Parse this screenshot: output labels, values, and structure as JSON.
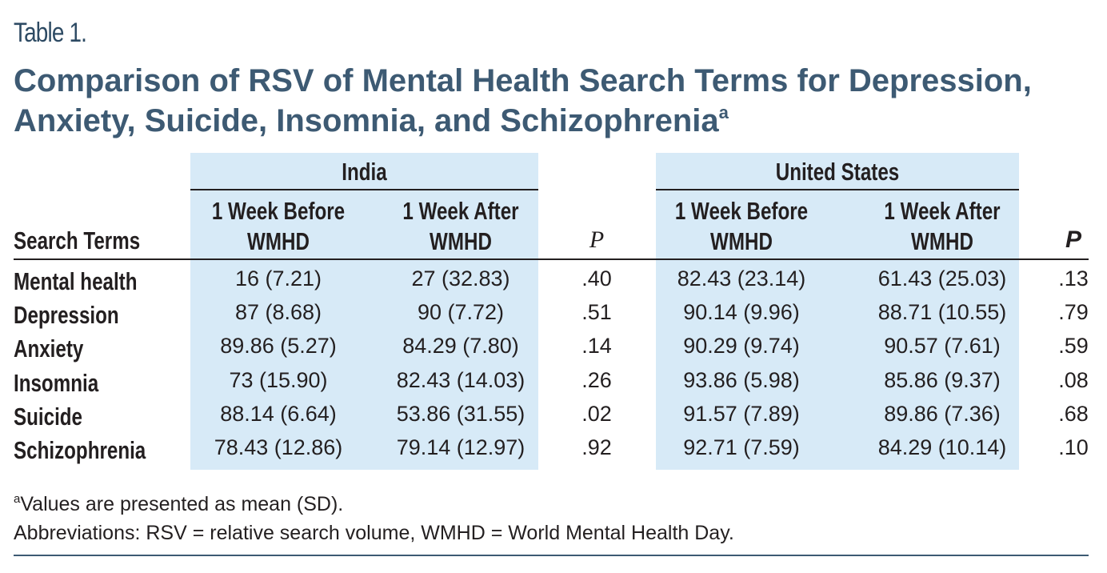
{
  "table_label": "Table 1.",
  "title": "Comparison of RSV of Mental Health Search Terms for Depression, Anxiety, Suicide, Insomnia, and Schizophrenia",
  "title_sup": "a",
  "groups": {
    "india": "India",
    "us": "United States"
  },
  "headers": {
    "search_terms": "Search Terms",
    "before": "1 Week Before WMHD",
    "after": "1 Week After WMHD",
    "p": "P"
  },
  "rows": [
    {
      "term": "Mental health",
      "india_before": "16 (7.21)",
      "india_after": "27 (32.83)",
      "india_p": ".40",
      "us_before": "82.43 (23.14)",
      "us_after": "61.43 (25.03)",
      "us_p": ".13"
    },
    {
      "term": "Depression",
      "india_before": "87 (8.68)",
      "india_after": "90 (7.72)",
      "india_p": ".51",
      "us_before": "90.14 (9.96)",
      "us_after": "88.71 (10.55)",
      "us_p": ".79"
    },
    {
      "term": "Anxiety",
      "india_before": "89.86 (5.27)",
      "india_after": "84.29 (7.80)",
      "india_p": ".14",
      "us_before": "90.29 (9.74)",
      "us_after": "90.57 (7.61)",
      "us_p": ".59"
    },
    {
      "term": "Insomnia",
      "india_before": "73 (15.90)",
      "india_after": "82.43 (14.03)",
      "india_p": ".26",
      "us_before": "93.86 (5.98)",
      "us_after": "85.86 (9.37)",
      "us_p": ".08"
    },
    {
      "term": "Suicide",
      "india_before": "88.14 (6.64)",
      "india_after": "53.86 (31.55)",
      "india_p": ".02",
      "us_before": "91.57 (7.89)",
      "us_after": "89.86 (7.36)",
      "us_p": ".68"
    },
    {
      "term": "Schizophrenia",
      "india_before": "78.43 (12.86)",
      "india_after": "79.14 (12.97)",
      "india_p": ".92",
      "us_before": "92.71 (7.59)",
      "us_after": "84.29 (10.14)",
      "us_p": ".10"
    }
  ],
  "footnotes": {
    "a_marker": "a",
    "a_text": "Values are presented as mean (SD).",
    "abbreviations": "Abbreviations: RSV = relative search volume, WMHD = World Mental Health Day."
  },
  "colors": {
    "title": "#3d5a73",
    "band": "#d7eaf7",
    "text": "#231f20"
  }
}
